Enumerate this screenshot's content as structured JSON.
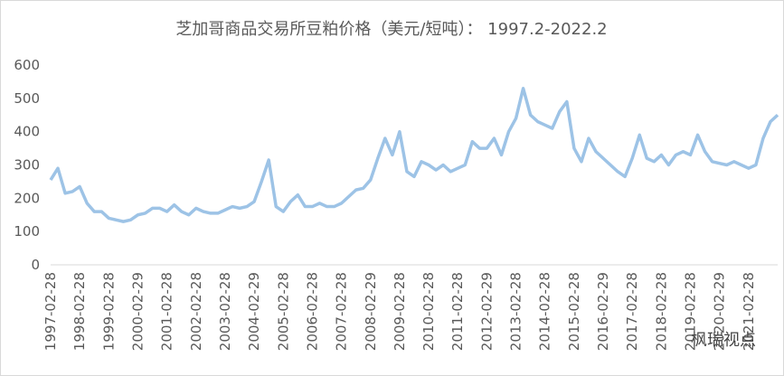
{
  "chart_data": {
    "type": "line",
    "title": "芝加哥商品交易所豆粕价格（美元/短吨）： 1997.2-2022.2",
    "watermark": "枫瑞视点",
    "categories": [
      "1997-02-28",
      null,
      null,
      null,
      "1998-02-28",
      null,
      null,
      null,
      "1999-02-28",
      null,
      null,
      null,
      "2000-02-29",
      null,
      null,
      null,
      "2001-02-28",
      null,
      null,
      null,
      "2002-02-28",
      null,
      null,
      null,
      "2003-02-28",
      null,
      null,
      null,
      "2004-02-29",
      null,
      null,
      null,
      "2005-02-28",
      null,
      null,
      null,
      "2006-02-28",
      null,
      null,
      null,
      "2007-02-28",
      null,
      null,
      null,
      "2008-02-29",
      null,
      null,
      null,
      "2009-02-28",
      null,
      null,
      null,
      "2010-02-28",
      null,
      null,
      null,
      "2011-02-28",
      null,
      null,
      null,
      "2012-02-29",
      null,
      null,
      null,
      "2013-02-28",
      null,
      null,
      null,
      "2014-02-28",
      null,
      null,
      null,
      "2015-02-28",
      null,
      null,
      null,
      "2016-02-29",
      null,
      null,
      null,
      "2017-02-28",
      null,
      null,
      null,
      "2018-02-28",
      null,
      null,
      null,
      "2019-02-28",
      null,
      null,
      null,
      "2020-02-29",
      null,
      null,
      null,
      "2021-02-28",
      null,
      null,
      null,
      null
    ],
    "series": [
      {
        "color": "#9dc3e6",
        "values": [
          255,
          290,
          215,
          220,
          235,
          185,
          160,
          160,
          140,
          135,
          130,
          135,
          150,
          155,
          170,
          170,
          160,
          180,
          160,
          150,
          170,
          160,
          155,
          155,
          165,
          175,
          170,
          175,
          190,
          250,
          315,
          175,
          160,
          190,
          210,
          175,
          175,
          185,
          175,
          175,
          185,
          205,
          225,
          230,
          255,
          320,
          380,
          330,
          400,
          280,
          265,
          310,
          300,
          285,
          300,
          280,
          290,
          300,
          370,
          350,
          350,
          380,
          330,
          400,
          440,
          530,
          450,
          430,
          420,
          410,
          460,
          490,
          350,
          310,
          380,
          340,
          320,
          300,
          280,
          265,
          320,
          390,
          320,
          310,
          330,
          300,
          330,
          340,
          330,
          390,
          340,
          310,
          305,
          300,
          310,
          300,
          290,
          300,
          380,
          430,
          450
        ]
      }
    ],
    "ylim": [
      0,
      600
    ],
    "yticks": [
      0,
      100,
      200,
      300,
      400,
      500,
      600
    ]
  }
}
